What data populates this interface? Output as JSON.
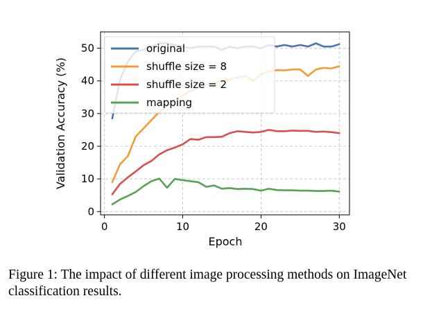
{
  "caption": "Figure 1: The impact of different image processing methods on ImageNet classification results.",
  "chart_data": {
    "type": "line",
    "title": "",
    "xlabel": "Epoch",
    "ylabel": "Validation Accuracy (%)",
    "xlim": [
      -0.5,
      31.3
    ],
    "ylim": [
      -1,
      55
    ],
    "xticks": [
      0,
      10,
      20,
      30
    ],
    "yticks": [
      0,
      10,
      20,
      30,
      40,
      50
    ],
    "grid": true,
    "legend_position": "top-left",
    "series": [
      {
        "name": "original",
        "color": "#4c72b0",
        "x": [
          1,
          2,
          3,
          4,
          5,
          6,
          7,
          8,
          9,
          10,
          11,
          12,
          13,
          14,
          15,
          16,
          17,
          18,
          19,
          20,
          21,
          22,
          23,
          24,
          25,
          26,
          27,
          28,
          29,
          30
        ],
        "values": [
          28.5,
          40.5,
          46,
          49,
          49.5,
          50.5,
          51.5,
          51.5,
          51,
          50.5,
          50,
          50.5,
          50.5,
          50.5,
          49.5,
          50.5,
          50,
          50.5,
          50.5,
          50,
          51,
          50.5,
          51,
          50.5,
          51,
          50.5,
          51.5,
          50.5,
          50.5,
          51.2
        ]
      },
      {
        "name": "shuffle size = 8",
        "color": "#f39c35",
        "x": [
          1,
          2,
          3,
          4,
          5,
          6,
          7,
          8,
          9,
          10,
          11,
          12,
          13,
          14,
          15,
          16,
          17,
          18,
          19,
          20,
          21,
          22,
          23,
          24,
          25,
          26,
          27,
          28,
          29,
          30
        ],
        "values": [
          9,
          14.5,
          17,
          23,
          25.5,
          28,
          30.5,
          32.5,
          34,
          35.5,
          37,
          38,
          39,
          39.5,
          40,
          40.5,
          41,
          41.5,
          40,
          42,
          43,
          43.3,
          43.2,
          43.5,
          43.5,
          41.5,
          43.5,
          44,
          43.8,
          44.5
        ]
      },
      {
        "name": "shuffle size = 2",
        "color": "#dc4e4e",
        "x": [
          1,
          2,
          3,
          4,
          5,
          6,
          7,
          8,
          9,
          10,
          11,
          12,
          13,
          14,
          15,
          16,
          17,
          18,
          19,
          20,
          21,
          22,
          23,
          24,
          25,
          26,
          27,
          28,
          29,
          30
        ],
        "values": [
          5.3,
          8.5,
          10.5,
          12.3,
          14.2,
          15.5,
          17.5,
          18.8,
          19.6,
          20.6,
          22.2,
          22.0,
          22.8,
          22.8,
          22.9,
          24.0,
          24.6,
          24.4,
          24.2,
          24.4,
          25.0,
          24.6,
          24.6,
          24.8,
          24.7,
          24.7,
          24.4,
          24.5,
          24.3,
          24.0
        ]
      },
      {
        "name": "mapping",
        "color": "#55a352",
        "x": [
          1,
          2,
          3,
          4,
          5,
          6,
          7,
          8,
          9,
          10,
          11,
          12,
          13,
          14,
          15,
          16,
          17,
          18,
          19,
          20,
          21,
          22,
          23,
          24,
          25,
          26,
          27,
          28,
          29,
          30
        ],
        "values": [
          2.2,
          3.7,
          4.8,
          6,
          7.8,
          9.3,
          10.1,
          7.3,
          10,
          9.6,
          9.3,
          9,
          7.6,
          8,
          7,
          7.2,
          6.9,
          7,
          6.9,
          6.4,
          7,
          6.6,
          6.5,
          6.5,
          6.4,
          6.4,
          6.3,
          6.3,
          6.4,
          6.1
        ]
      }
    ]
  }
}
